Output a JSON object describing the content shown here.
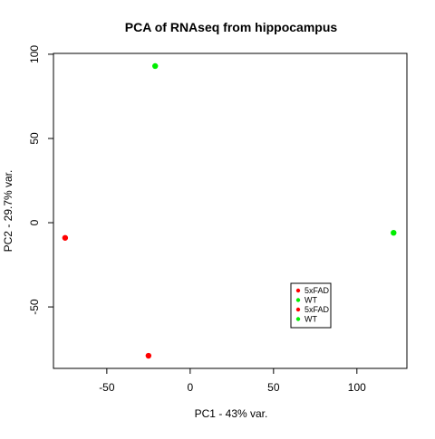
{
  "chart_data": {
    "type": "scatter",
    "title": "PCA of RNAseq from hippocampus",
    "xlabel": "PC1 - 43% var.",
    "ylabel": "PC2 - 29.7% var.",
    "xlim": [
      -82,
      130
    ],
    "ylim": [
      -86.5,
      100.5
    ],
    "x_ticks": [
      -50,
      0,
      50,
      100
    ],
    "y_ticks": [
      -50,
      0,
      50,
      100
    ],
    "x_tick_labels": [
      "-50",
      "0",
      "50",
      "100"
    ],
    "y_tick_labels": [
      "-50",
      "0",
      "50",
      "100"
    ],
    "grid": false,
    "legend_position": "bottom-right",
    "colors": {
      "5xFAD": "#ff0000",
      "WT": "#00ee00"
    },
    "points": [
      {
        "x": -21,
        "y": 93,
        "group": "WT"
      },
      {
        "x": 122,
        "y": -6,
        "group": "WT"
      },
      {
        "x": -75,
        "y": -9,
        "group": "5xFAD"
      },
      {
        "x": -25,
        "y": -79,
        "group": "5xFAD"
      }
    ],
    "legend": [
      {
        "label": "5xFAD",
        "color": "#ff0000"
      },
      {
        "label": "WT",
        "color": "#00ee00"
      },
      {
        "label": "5xFAD",
        "color": "#ff0000"
      },
      {
        "label": "WT",
        "color": "#00ee00"
      }
    ]
  }
}
